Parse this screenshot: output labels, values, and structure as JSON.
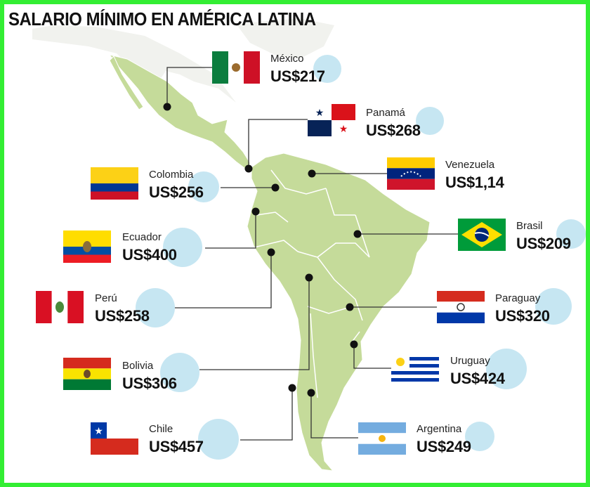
{
  "title": "SALARIO MÍNIMO EN AMÉRICA LATINA",
  "colors": {
    "frame": "#33ee33",
    "land": "#c5db9a",
    "bubble": "#c6e6f2",
    "leader": "#222222"
  },
  "chart_data": {
    "type": "bar",
    "title": "SALARIO MÍNIMO EN AMÉRICA LATINA",
    "unit": "US$",
    "categories": [
      "México",
      "Panamá",
      "Venezuela",
      "Colombia",
      "Brasil",
      "Ecuador",
      "Perú",
      "Paraguay",
      "Bolivia",
      "Uruguay",
      "Chile",
      "Argentina"
    ],
    "values": [
      217,
      268,
      1.14,
      256,
      209,
      400,
      258,
      320,
      306,
      424,
      457,
      249
    ],
    "labels": [
      "US$217",
      "US$268",
      "US$1,14",
      "US$256",
      "US$209",
      "US$400",
      "US$258",
      "US$320",
      "US$306",
      "US$424",
      "US$457",
      "US$249"
    ],
    "flag_icons": [
      "flag-mexico-icon",
      "flag-panama-icon",
      "flag-venezuela-icon",
      "flag-colombia-icon",
      "flag-brazil-icon",
      "flag-ecuador-icon",
      "flag-peru-icon",
      "flag-paraguay-icon",
      "flag-bolivia-icon",
      "flag-uruguay-icon",
      "flag-chile-icon",
      "flag-argentina-icon"
    ]
  }
}
